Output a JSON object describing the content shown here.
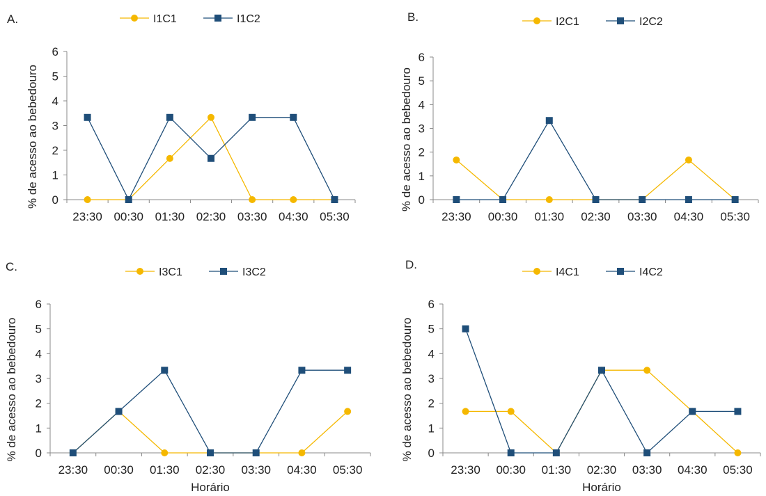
{
  "chart_data": [
    {
      "type": "line",
      "panel_label": "A.",
      "x": [
        "23:30",
        "00:30",
        "01:30",
        "02:30",
        "03:30",
        "04:30",
        "05:30"
      ],
      "ylabel": "% de acesso ao bebedouro",
      "xlabel": "",
      "ylim": [
        0,
        6
      ],
      "yticks": [
        "0",
        "1",
        "2",
        "3",
        "4",
        "5",
        "6"
      ],
      "grid": false,
      "legend_position": "top",
      "series": [
        {
          "name": "I1C1",
          "values": [
            0,
            0,
            1.67,
            3.33,
            0,
            0,
            0
          ],
          "color": "#F5B800",
          "marker": "circle"
        },
        {
          "name": "I1C2",
          "values": [
            3.33,
            0,
            3.33,
            1.67,
            3.33,
            3.33,
            0
          ],
          "color": "#1F4E79",
          "marker": "square"
        }
      ]
    },
    {
      "type": "line",
      "panel_label": "B.",
      "x": [
        "23:30",
        "00:30",
        "01:30",
        "02:30",
        "03:30",
        "04:30",
        "05:30"
      ],
      "ylabel": "% de acesso ao bebedouro",
      "xlabel": "",
      "ylim": [
        0,
        6
      ],
      "yticks": [
        "0",
        "1",
        "2",
        "3",
        "4",
        "5",
        "6"
      ],
      "grid": false,
      "legend_position": "top",
      "series": [
        {
          "name": "I2C1",
          "values": [
            1.67,
            0,
            0,
            0,
            0,
            1.67,
            0
          ],
          "color": "#F5B800",
          "marker": "circle"
        },
        {
          "name": "I2C2",
          "values": [
            0,
            0,
            3.33,
            0,
            0,
            0,
            0
          ],
          "color": "#1F4E79",
          "marker": "square"
        }
      ]
    },
    {
      "type": "line",
      "panel_label": "C.",
      "x": [
        "23:30",
        "00:30",
        "01:30",
        "02:30",
        "03:30",
        "04:30",
        "05:30"
      ],
      "ylabel": "% de acesso ao bebedouro",
      "xlabel": "Horário",
      "ylim": [
        0,
        6
      ],
      "yticks": [
        "0",
        "1",
        "2",
        "3",
        "4",
        "5",
        "6"
      ],
      "grid": false,
      "legend_position": "top",
      "series": [
        {
          "name": "I3C1",
          "values": [
            0,
            1.67,
            0,
            0,
            0,
            0,
            1.67
          ],
          "color": "#F5B800",
          "marker": "circle"
        },
        {
          "name": "I3C2",
          "values": [
            0,
            1.67,
            3.33,
            0,
            0,
            3.33,
            3.33
          ],
          "color": "#1F4E79",
          "marker": "square"
        }
      ]
    },
    {
      "type": "line",
      "panel_label": "D.",
      "x": [
        "23:30",
        "00:30",
        "01:30",
        "02:30",
        "03:30",
        "04:30",
        "05:30"
      ],
      "ylabel": "% de acesso ao bebedouro",
      "xlabel": "Horário",
      "ylim": [
        0,
        6
      ],
      "yticks": [
        "0",
        "1",
        "2",
        "3",
        "4",
        "5",
        "6"
      ],
      "grid": false,
      "legend_position": "top",
      "series": [
        {
          "name": "I4C1",
          "values": [
            1.67,
            1.67,
            0,
            3.33,
            3.33,
            1.67,
            0
          ],
          "color": "#F5B800",
          "marker": "circle"
        },
        {
          "name": "I4C2",
          "values": [
            5,
            0,
            0,
            3.33,
            0,
            1.67,
            1.67
          ],
          "color": "#1F4E79",
          "marker": "square"
        }
      ]
    }
  ]
}
